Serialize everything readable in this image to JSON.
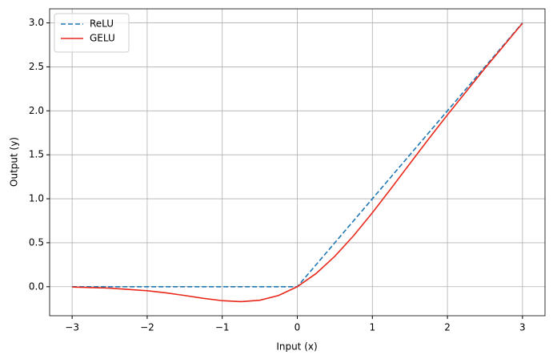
{
  "chart_data": {
    "type": "line",
    "xlabel": "Input (x)",
    "ylabel": "Output (y)",
    "x": [
      -3,
      -2.5,
      -2,
      -1.75,
      -1.5,
      -1.25,
      -1,
      -0.75,
      -0.5,
      -0.25,
      0,
      0.25,
      0.5,
      0.75,
      1,
      1.25,
      1.5,
      1.75,
      2,
      2.5,
      3
    ],
    "series": [
      {
        "name": "ReLU",
        "color": "#1f77b4",
        "linestyle": "dashed",
        "values": [
          0,
          0,
          0,
          0,
          0,
          0,
          0,
          0,
          0,
          0,
          0,
          0.25,
          0.5,
          0.75,
          1,
          1.25,
          1.5,
          1.75,
          2,
          2.5,
          3
        ]
      },
      {
        "name": "GELU",
        "color": "#e8291c",
        "linestyle": "solid",
        "values": [
          -0.004,
          -0.016,
          -0.046,
          -0.07,
          -0.1,
          -0.132,
          -0.159,
          -0.17,
          -0.154,
          -0.1,
          0,
          0.15,
          0.346,
          0.58,
          0.841,
          1.118,
          1.4,
          1.68,
          1.954,
          2.484,
          2.996
        ]
      }
    ],
    "xlim": [
      -3.3,
      3.3
    ],
    "xticks": [
      {
        "value": -3,
        "label": "−3"
      },
      {
        "value": -2,
        "label": "−2"
      },
      {
        "value": -1,
        "label": "−1"
      },
      0,
      1,
      2,
      3
    ],
    "ylim": [
      -0.33,
      3.16
    ],
    "yticks": [
      {
        "value": 0,
        "label": "0.0"
      },
      {
        "value": 0.5,
        "label": "0.5"
      },
      {
        "value": 1,
        "label": "1.0"
      },
      {
        "value": 1.5,
        "label": "1.5"
      },
      {
        "value": 2,
        "label": "2.0"
      },
      {
        "value": 2.5,
        "label": "2.5"
      },
      {
        "value": 3,
        "label": "3.0"
      }
    ],
    "grid": true,
    "legend": "upper-left"
  }
}
